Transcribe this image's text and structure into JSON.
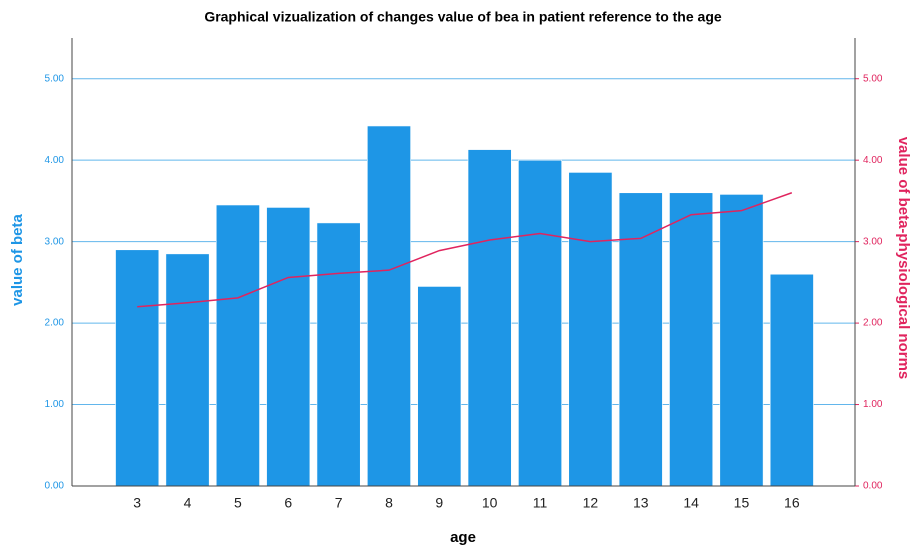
{
  "chart_data": {
    "type": "bar",
    "title": "Graphical vizualization of changes value of bea in patient reference to the age",
    "x_label": "age",
    "y_label": "value of beta",
    "y2_label": "value of beta-physiological norms",
    "categories": [
      "3",
      "4",
      "5",
      "6",
      "7",
      "8",
      "9",
      "10",
      "11",
      "12",
      "13",
      "14",
      "15",
      "16"
    ],
    "series": [
      {
        "name": "value of beta",
        "type": "bar",
        "color": "#1e96e6",
        "values": [
          2.9,
          2.85,
          3.45,
          3.42,
          3.23,
          4.42,
          2.45,
          4.13,
          4.0,
          3.85,
          3.6,
          3.6,
          3.58,
          2.6
        ]
      },
      {
        "name": "value of beta-physiological norms",
        "type": "line",
        "axis": "y2",
        "color": "#e0245e",
        "values": [
          2.2,
          2.25,
          2.31,
          2.56,
          2.61,
          2.65,
          2.89,
          3.02,
          3.1,
          3.0,
          3.04,
          3.33,
          3.38,
          3.6
        ]
      }
    ],
    "ylim": [
      0,
      5.5
    ],
    "yticks": [
      {
        "value": 0,
        "label": "0.00"
      },
      {
        "value": 1,
        "label": "1.00"
      },
      {
        "value": 2,
        "label": "2.00"
      },
      {
        "value": 3,
        "label": "3.00"
      },
      {
        "value": 4,
        "label": "4.00"
      },
      {
        "value": 5,
        "label": "5.00"
      }
    ],
    "y2lim": [
      0,
      5.5
    ],
    "y2ticks": [
      {
        "value": 0,
        "label": "0.00"
      },
      {
        "value": 1,
        "label": "1.00"
      },
      {
        "value": 2,
        "label": "2.00"
      },
      {
        "value": 3,
        "label": "3.00"
      },
      {
        "value": 4,
        "label": "4.00"
      },
      {
        "value": 5,
        "label": "5.00"
      }
    ],
    "grid": true
  }
}
